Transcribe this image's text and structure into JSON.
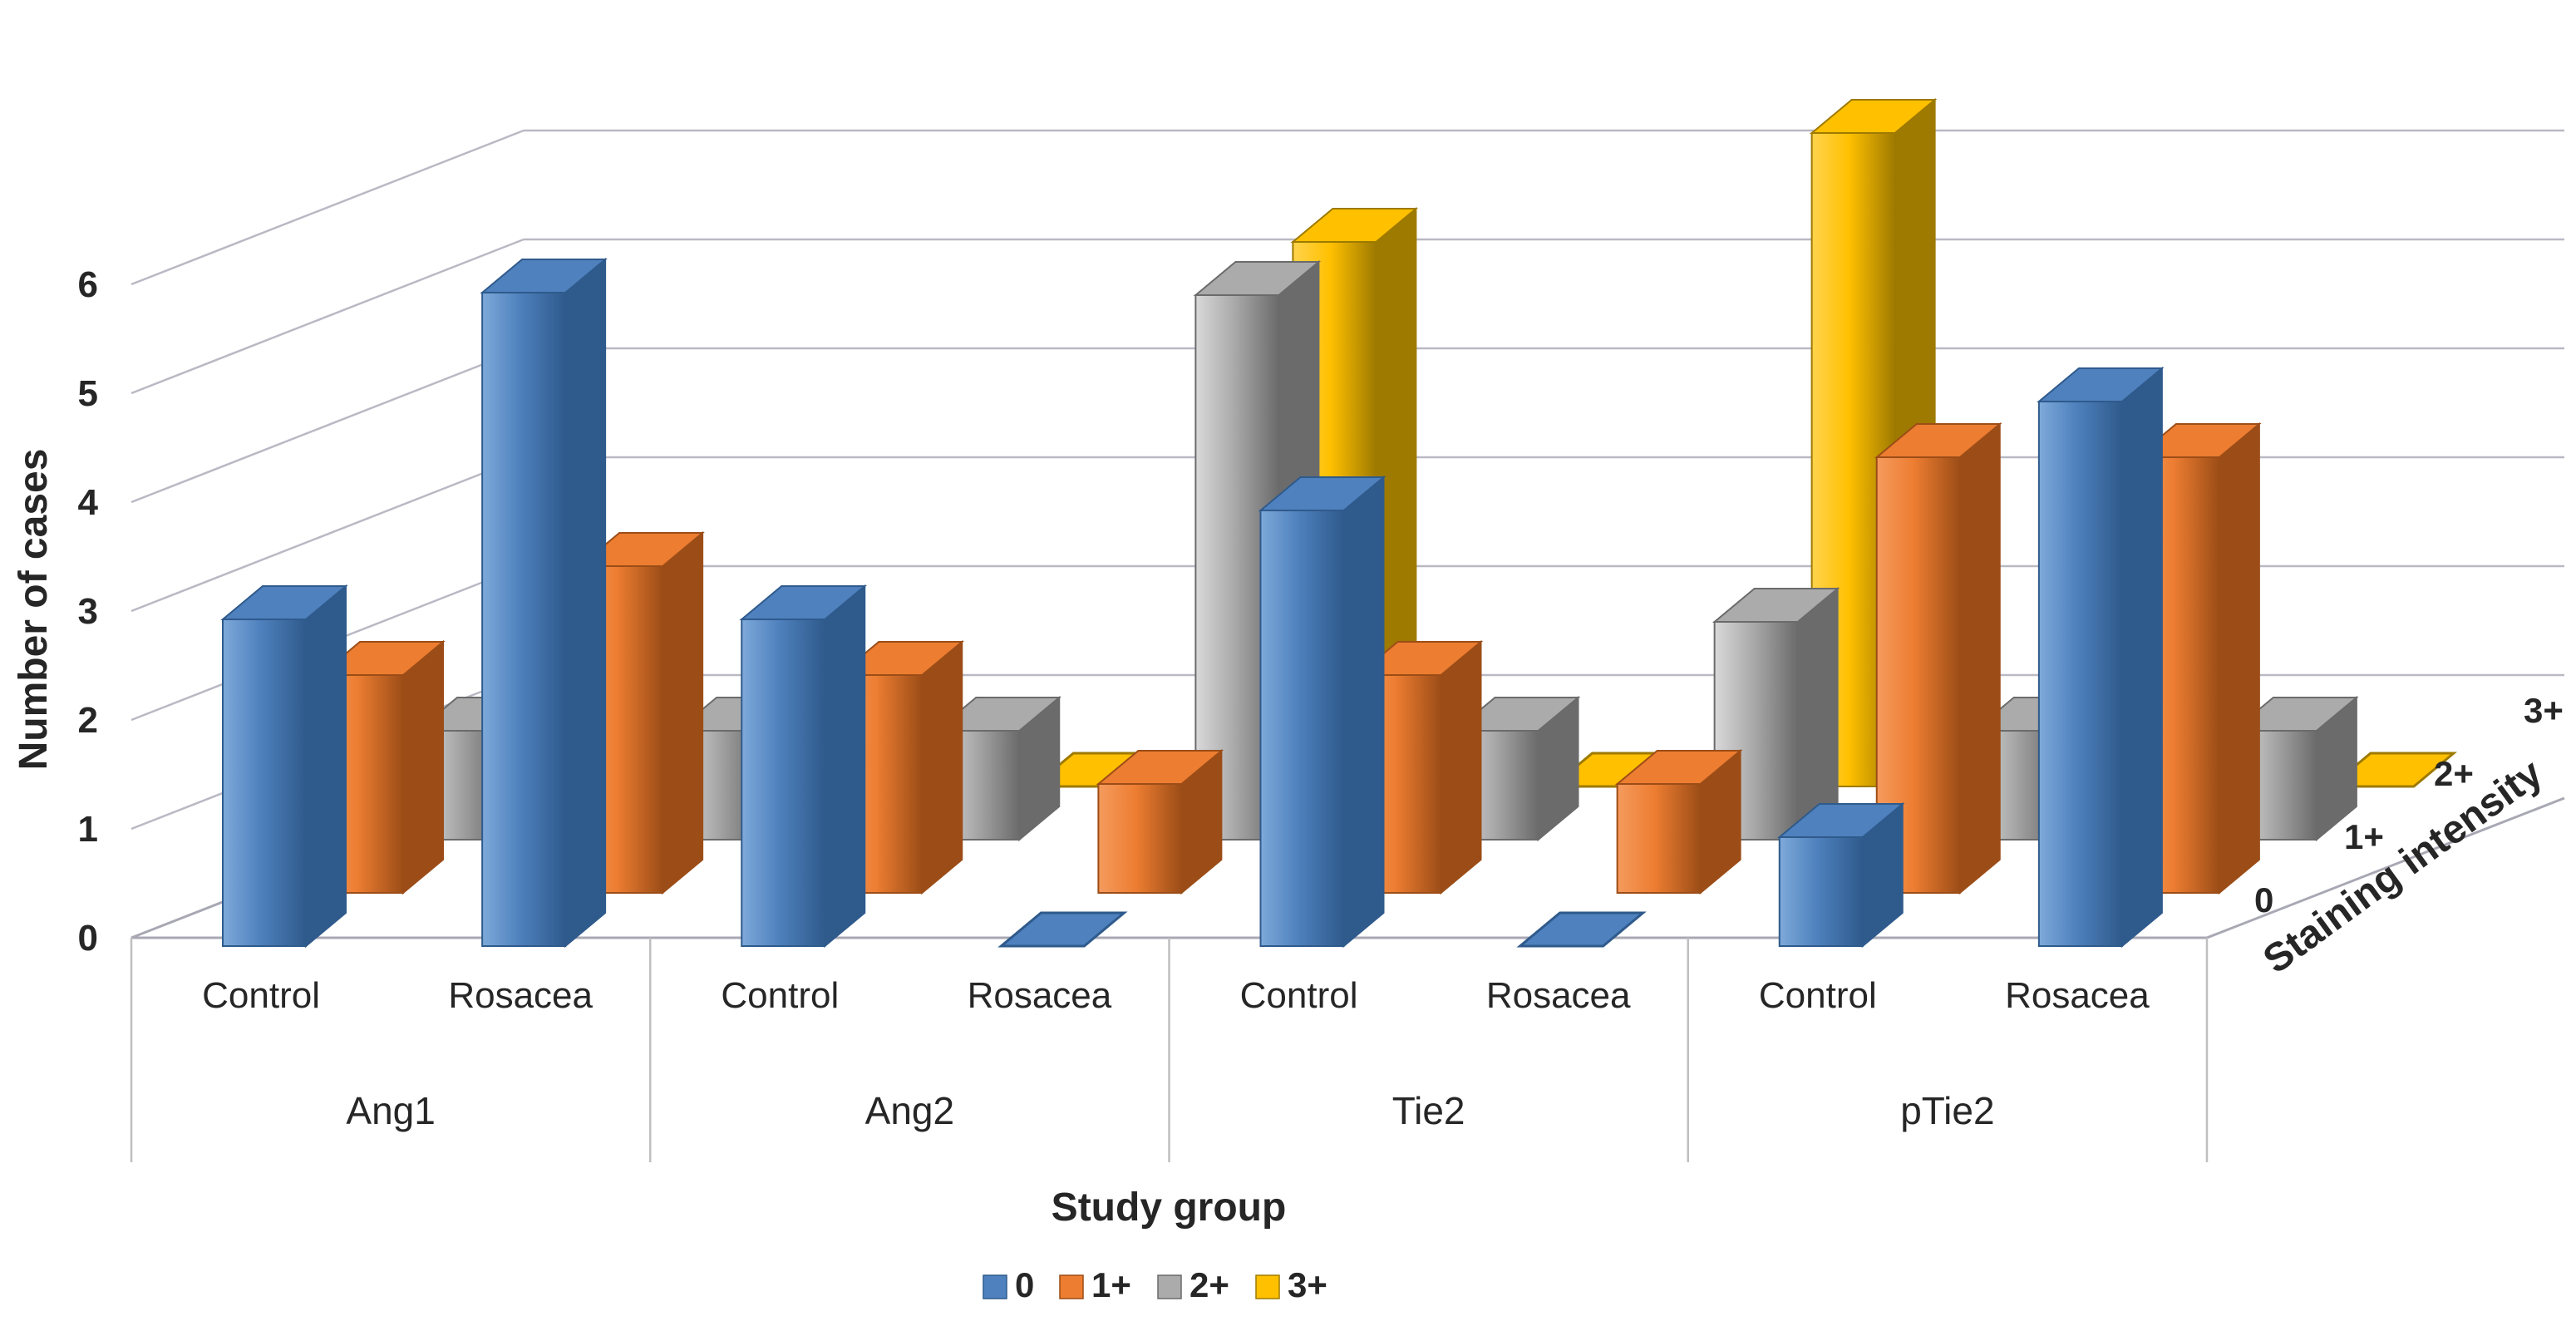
{
  "chart_data": {
    "type": "bar",
    "projection": "3d-columns",
    "categories": [
      {
        "group": "Ang1",
        "subgroup": "Control"
      },
      {
        "group": "Ang1",
        "subgroup": "Rosacea"
      },
      {
        "group": "Ang2",
        "subgroup": "Control"
      },
      {
        "group": "Ang2",
        "subgroup": "Rosacea"
      },
      {
        "group": "Tie2",
        "subgroup": "Control"
      },
      {
        "group": "Tie2",
        "subgroup": "Rosacea"
      },
      {
        "group": "pTie2",
        "subgroup": "Control"
      },
      {
        "group": "pTie2",
        "subgroup": "Rosacea"
      }
    ],
    "groups": [
      "Ang1",
      "Ang2",
      "Tie2",
      "pTie2"
    ],
    "subgroups": [
      "Control",
      "Rosacea"
    ],
    "series": [
      {
        "name": "0",
        "color": "#4E81BD",
        "light": "#7EA9DA",
        "dark": "#2F5A8C",
        "values": [
          3,
          6,
          3,
          0,
          4,
          0,
          1,
          5
        ]
      },
      {
        "name": "1+",
        "color": "#ED7D31",
        "light": "#F59B5E",
        "dark": "#9C4D17",
        "values": [
          2,
          3,
          2,
          1,
          2,
          1,
          4,
          4
        ]
      },
      {
        "name": "2+",
        "color": "#ABABAB",
        "light": "#D9D9D9",
        "dark": "#6B6B6B",
        "values": [
          1,
          1,
          1,
          5,
          1,
          2,
          1,
          1
        ]
      },
      {
        "name": "3+",
        "color": "#FFC000",
        "light": "#FFD34D",
        "dark": "#9E7A00",
        "values": [
          0,
          0,
          0,
          5,
          0,
          6,
          0,
          0
        ]
      }
    ],
    "xlabel": "Study group",
    "ylabel": "Number of cases",
    "zlabel": "Staining intensity",
    "ylim": [
      0,
      6
    ],
    "yticks": [
      "0",
      "1",
      "2",
      "3",
      "4",
      "5",
      "6"
    ],
    "ztick_labels": [
      "0",
      "1+",
      "2+",
      "3+"
    ],
    "legend": {
      "position": "bottom",
      "entries": [
        "0",
        "1+",
        "2+",
        "3+"
      ]
    },
    "grid": true,
    "gridline_color": "#B9B9C4",
    "table_line_color": "#BFBFBF",
    "text_color": "#262626"
  }
}
